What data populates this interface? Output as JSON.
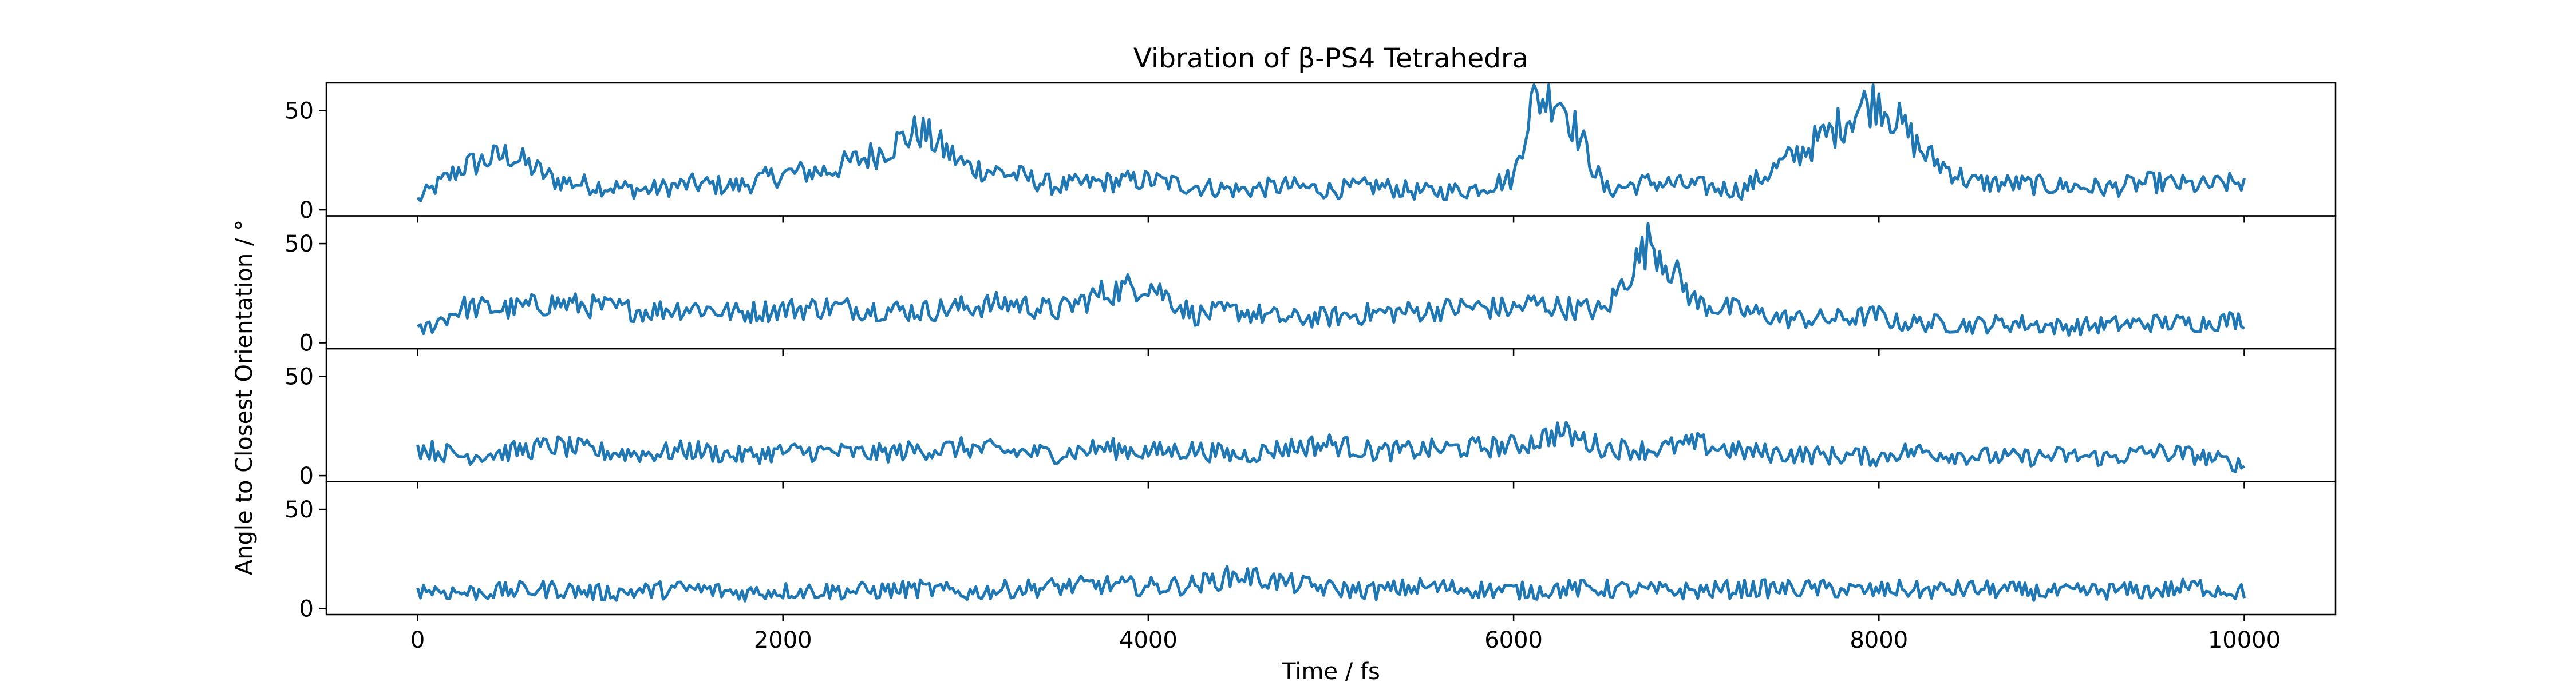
{
  "chart_data": {
    "type": "line",
    "title": "Vibration of β-PS4 Tetrahedra",
    "xlabel": "Time / fs",
    "ylabel": "Angle to Closest Orientation / °",
    "xlim": [
      -500,
      10500
    ],
    "ylim": [
      -3,
      64
    ],
    "x_ticks": [
      "0",
      "2000",
      "4000",
      "6000",
      "8000",
      "10000"
    ],
    "y_ticks": [
      "0",
      "50"
    ],
    "grid": false,
    "line_color": "#1f77b4",
    "x": [
      0,
      250,
      500,
      750,
      1000,
      1250,
      1500,
      1750,
      2000,
      2250,
      2500,
      2750,
      3000,
      3250,
      3500,
      3750,
      4000,
      4250,
      4500,
      4750,
      5000,
      5250,
      5500,
      5750,
      6000,
      6100,
      6250,
      6500,
      6750,
      7000,
      7250,
      7500,
      7750,
      7900,
      8000,
      8100,
      8250,
      8500,
      8750,
      9000,
      9250,
      9500,
      9750,
      10000
    ],
    "panels": [
      {
        "values": [
          5,
          22,
          28,
          15,
          12,
          10,
          13,
          12,
          18,
          20,
          28,
          40,
          22,
          18,
          12,
          14,
          15,
          12,
          10,
          12,
          10,
          12,
          9,
          10,
          16,
          55,
          58,
          10,
          14,
          12,
          10,
          25,
          40,
          52,
          56,
          45,
          28,
          14,
          13,
          12,
          11,
          14,
          12,
          14
        ]
      },
      {
        "values": [
          5,
          18,
          17,
          20,
          18,
          16,
          18,
          15,
          17,
          18,
          17,
          16,
          18,
          20,
          16,
          25,
          30,
          14,
          16,
          12,
          13,
          15,
          16,
          18,
          17,
          20,
          18,
          16,
          52,
          20,
          16,
          12,
          12,
          13,
          14,
          10,
          10,
          9,
          10,
          8,
          9,
          10,
          10,
          12
        ]
      },
      {
        "values": [
          14,
          10,
          12,
          15,
          12,
          11,
          13,
          10,
          12,
          12,
          11,
          13,
          14,
          12,
          11,
          14,
          12,
          13,
          10,
          14,
          16,
          12,
          13,
          14,
          15,
          17,
          22,
          14,
          13,
          16,
          12,
          11,
          10,
          10,
          9,
          12,
          12,
          10,
          9,
          10,
          9,
          12,
          10,
          5
        ]
      },
      {
        "values": [
          10,
          8,
          9,
          10,
          8,
          9,
          10,
          8,
          9,
          9,
          9,
          10,
          8,
          10,
          11,
          12,
          11,
          12,
          17,
          13,
          10,
          9,
          11,
          10,
          9,
          9,
          10,
          10,
          9,
          9,
          10,
          10,
          10,
          9,
          9,
          10,
          9,
          10,
          9,
          8,
          9,
          9,
          11,
          8
        ]
      }
    ]
  }
}
